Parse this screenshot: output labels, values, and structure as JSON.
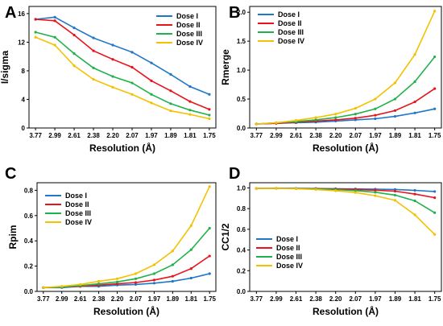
{
  "colors": {
    "dose_1": "#1f77c8",
    "dose_2": "#e8141c",
    "dose_3": "#20b24a",
    "dose_4": "#f5c000"
  },
  "chart_data": [
    {
      "panel": "A",
      "type": "line",
      "xlabel": "Resolution (Å)",
      "ylabel": "I/sigma",
      "categories": [
        "3.77",
        "2.99",
        "2.61",
        "2.38",
        "2.20",
        "2.07",
        "1.97",
        "1.89",
        "1.81",
        "1.75"
      ],
      "ylim": [
        0,
        17
      ],
      "yticks": [
        "0",
        "4",
        "8",
        "12",
        "16"
      ],
      "legend_position": "top-right",
      "series": [
        {
          "name": "Dose I",
          "values": [
            15.2,
            15.5,
            14.0,
            12.6,
            11.6,
            10.6,
            9.1,
            7.5,
            5.8,
            4.7
          ]
        },
        {
          "name": "Dose II",
          "values": [
            15.2,
            15.0,
            13.0,
            10.8,
            9.6,
            8.5,
            6.6,
            5.2,
            3.7,
            2.6
          ]
        },
        {
          "name": "Dose III",
          "values": [
            13.4,
            12.7,
            10.4,
            8.4,
            7.2,
            6.3,
            4.7,
            3.4,
            2.5,
            1.8
          ]
        },
        {
          "name": "Dose IV",
          "values": [
            12.7,
            11.6,
            8.7,
            6.8,
            5.7,
            4.7,
            3.5,
            2.4,
            1.9,
            1.3
          ]
        }
      ]
    },
    {
      "panel": "B",
      "type": "line",
      "xlabel": "Resolution (Å)",
      "ylabel": "Rmerge",
      "categories": [
        "3.77",
        "2.99",
        "2.61",
        "2.38",
        "2.20",
        "2.07",
        "1.97",
        "1.89",
        "1.81",
        "1.75"
      ],
      "ylim": [
        0,
        2.1
      ],
      "yticks": [
        "0.0",
        "0.5",
        "1.0",
        "1.5",
        "2.0"
      ],
      "legend_position": "top-left",
      "series": [
        {
          "name": "Dose I",
          "values": [
            0.07,
            0.08,
            0.09,
            0.1,
            0.12,
            0.14,
            0.16,
            0.2,
            0.26,
            0.33
          ]
        },
        {
          "name": "Dose II",
          "values": [
            0.07,
            0.08,
            0.1,
            0.12,
            0.14,
            0.17,
            0.22,
            0.3,
            0.45,
            0.68
          ]
        },
        {
          "name": "Dose III",
          "values": [
            0.07,
            0.09,
            0.11,
            0.14,
            0.18,
            0.24,
            0.33,
            0.5,
            0.8,
            1.23
          ]
        },
        {
          "name": "Dose IV",
          "values": [
            0.07,
            0.09,
            0.13,
            0.18,
            0.24,
            0.34,
            0.5,
            0.78,
            1.27,
            2.02
          ]
        }
      ]
    },
    {
      "panel": "C",
      "type": "line",
      "xlabel": "Resolution (Å)",
      "ylabel": "Rpim",
      "categories": [
        "3.77",
        "2.99",
        "2.61",
        "2.38",
        "2.20",
        "2.07",
        "1.97",
        "1.89",
        "1.81",
        "1.75"
      ],
      "ylim": [
        0,
        0.86
      ],
      "yticks": [
        "0.0",
        "0.2",
        "0.4",
        "0.6",
        "0.8"
      ],
      "legend_position": "top-left",
      "series": [
        {
          "name": "Dose I",
          "values": [
            0.03,
            0.03,
            0.04,
            0.04,
            0.05,
            0.055,
            0.065,
            0.08,
            0.105,
            0.14
          ]
        },
        {
          "name": "Dose II",
          "values": [
            0.03,
            0.035,
            0.04,
            0.05,
            0.06,
            0.07,
            0.09,
            0.12,
            0.18,
            0.28
          ]
        },
        {
          "name": "Dose III",
          "values": [
            0.03,
            0.035,
            0.045,
            0.06,
            0.075,
            0.1,
            0.14,
            0.21,
            0.33,
            0.5
          ]
        },
        {
          "name": "Dose IV",
          "values": [
            0.03,
            0.04,
            0.055,
            0.08,
            0.1,
            0.14,
            0.21,
            0.32,
            0.52,
            0.83
          ]
        }
      ]
    },
    {
      "panel": "D",
      "type": "line",
      "xlabel": "Resolution (Å)",
      "ylabel": "CC1/2",
      "categories": [
        "3.77",
        "2.99",
        "2.61",
        "2.38",
        "2.20",
        "2.07",
        "1.97",
        "1.89",
        "1.81",
        "1.75"
      ],
      "ylim": [
        0,
        1.05
      ],
      "yticks": [
        "0.0",
        "0.2",
        "0.4",
        "0.6",
        "0.8",
        "1.0"
      ],
      "legend_position": "bottom-left",
      "series": [
        {
          "name": "Dose I",
          "values": [
            0.995,
            0.996,
            0.995,
            0.994,
            0.992,
            0.99,
            0.988,
            0.985,
            0.976,
            0.965
          ]
        },
        {
          "name": "Dose II",
          "values": [
            0.995,
            0.996,
            0.995,
            0.993,
            0.99,
            0.985,
            0.978,
            0.968,
            0.94,
            0.905
          ]
        },
        {
          "name": "Dose III",
          "values": [
            0.995,
            0.995,
            0.994,
            0.99,
            0.984,
            0.974,
            0.958,
            0.93,
            0.875,
            0.76
          ]
        },
        {
          "name": "Dose IV",
          "values": [
            0.995,
            0.995,
            0.992,
            0.985,
            0.972,
            0.955,
            0.925,
            0.88,
            0.74,
            0.55
          ]
        }
      ]
    }
  ]
}
